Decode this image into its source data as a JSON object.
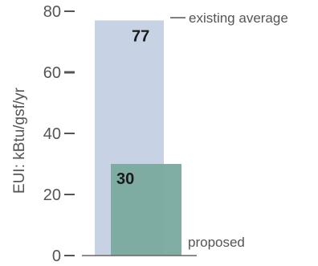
{
  "chart_data": {
    "type": "bar",
    "ylabel": "EUI:  kBtu/gsf/yr",
    "ylim": [
      0,
      80
    ],
    "yticks": [
      0,
      20,
      40,
      60,
      80
    ],
    "series": [
      {
        "value": 77,
        "value_label": "77",
        "annotation": "existing average",
        "color": "#c7d3e5"
      },
      {
        "value": 30,
        "value_label": "30",
        "annotation": "proposed",
        "color": "#7aaa9f"
      }
    ],
    "grid": false,
    "legend": "none"
  }
}
